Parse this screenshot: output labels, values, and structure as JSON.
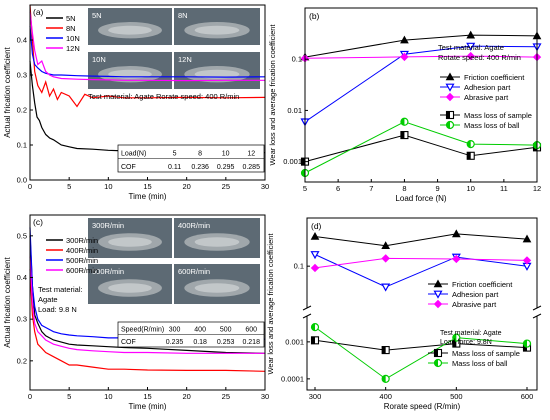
{
  "chart_data": [
    {
      "panel": "(a)",
      "type": "line",
      "xlabel": "Time (min)",
      "ylabel": "Actual frication coefficient",
      "xlim": [
        0,
        30
      ],
      "ylim": [
        0,
        0.5
      ],
      "xticks": [
        0,
        5,
        10,
        15,
        20,
        25,
        30
      ],
      "yticks": [
        0.0,
        0.1,
        0.2,
        0.3,
        0.4
      ],
      "legend_position": "top-left",
      "series": [
        {
          "name": "5N",
          "color": "#000000",
          "x": [
            0,
            0.3,
            0.6,
            0.9,
            1.2,
            1.5,
            2,
            2.5,
            3,
            4,
            5,
            6,
            8,
            10,
            12,
            15,
            20,
            25,
            30
          ],
          "y": [
            0.34,
            0.27,
            0.22,
            0.18,
            0.17,
            0.15,
            0.13,
            0.12,
            0.115,
            0.1,
            0.095,
            0.09,
            0.088,
            0.085,
            0.083,
            0.082,
            0.08,
            0.08,
            0.078
          ]
        },
        {
          "name": "8N",
          "color": "#ff0000",
          "x": [
            0,
            0.3,
            0.6,
            1,
            1.5,
            2,
            2.5,
            3,
            3.5,
            4,
            5,
            6,
            7,
            8,
            10,
            12,
            15,
            20,
            25,
            30
          ],
          "y": [
            0.5,
            0.4,
            0.31,
            0.27,
            0.25,
            0.28,
            0.24,
            0.26,
            0.23,
            0.25,
            0.24,
            0.21,
            0.245,
            0.235,
            0.24,
            0.235,
            0.235,
            0.236,
            0.235,
            0.236
          ]
        },
        {
          "name": "10N",
          "color": "#0000ff",
          "x": [
            0,
            0.3,
            0.6,
            1,
            1.5,
            2,
            3,
            4,
            6,
            8,
            10,
            12,
            15,
            20,
            25,
            30
          ],
          "y": [
            0.44,
            0.36,
            0.33,
            0.32,
            0.31,
            0.305,
            0.3,
            0.3,
            0.298,
            0.297,
            0.296,
            0.295,
            0.295,
            0.295,
            0.294,
            0.295
          ]
        },
        {
          "name": "12N",
          "color": "#ff00ff",
          "x": [
            0,
            0.3,
            0.6,
            1,
            1.5,
            2,
            2.5,
            3,
            4,
            6,
            8,
            10,
            12,
            15,
            20,
            25,
            30
          ],
          "y": [
            0.48,
            0.42,
            0.37,
            0.33,
            0.34,
            0.31,
            0.3,
            0.295,
            0.29,
            0.288,
            0.287,
            0.286,
            0.285,
            0.285,
            0.284,
            0.285,
            0.285
          ]
        }
      ],
      "image_labels": [
        "5N",
        "8N",
        "10N",
        "12N"
      ],
      "annotation": "Test material: Agate   Rorate speed: 400 R/min",
      "table": {
        "header_label": "Load(N)",
        "headers": [
          "5",
          "8",
          "10",
          "12"
        ],
        "row_label": "COF",
        "row": [
          "0.11",
          "0.236",
          "0.295",
          "0.285"
        ]
      }
    },
    {
      "panel": "(b)",
      "type": "line",
      "xlabel": "Load force (N)",
      "ylabel": "Wear  loss and average frication coefficient",
      "xlim": [
        5,
        12
      ],
      "ylim": [
        0.0004,
        1
      ],
      "yscale": "log",
      "xticks": [
        5,
        6,
        7,
        8,
        9,
        10,
        11,
        12
      ],
      "yticks": [
        "0.001",
        "0.01",
        "0.1"
      ],
      "legend_position": "right",
      "annotation": [
        "Test material: Agate",
        "Rotate speed: 400 R/min"
      ],
      "series": [
        {
          "name": "Friction coefficient",
          "color": "#000000",
          "marker": "triangle-up",
          "x": [
            5,
            8,
            10,
            12
          ],
          "y": [
            0.11,
            0.236,
            0.295,
            0.285
          ]
        },
        {
          "name": "Adhesion part",
          "color": "#0000ff",
          "marker": "triangle-down",
          "x": [
            5,
            8,
            10,
            12
          ],
          "y": [
            0.006,
            0.125,
            0.18,
            0.175
          ]
        },
        {
          "name": "Abrasive part",
          "color": "#ff00ff",
          "marker": "diamond",
          "x": [
            5,
            8,
            10,
            12
          ],
          "y": [
            0.104,
            0.111,
            0.115,
            0.11
          ]
        },
        {
          "name": "Mass loss of sample",
          "color": "#000000",
          "marker": "square-half",
          "x": [
            5,
            8,
            10,
            12
          ],
          "y": [
            0.001,
            0.0033,
            0.0013,
            0.0019
          ]
        },
        {
          "name": "Mass loss of ball",
          "color": "#00cc00",
          "marker": "circle-half",
          "x": [
            5,
            8,
            10,
            12
          ],
          "y": [
            0.0006,
            0.006,
            0.0022,
            0.0021
          ]
        }
      ]
    },
    {
      "panel": "(c)",
      "type": "line",
      "xlabel": "Time (min)",
      "ylabel": "Actual frication coefficient",
      "xlim": [
        0,
        30
      ],
      "ylim": [
        0.13,
        0.55
      ],
      "xticks": [
        0,
        5,
        10,
        15,
        20,
        25,
        30
      ],
      "yticks": [
        0.2,
        0.3,
        0.4,
        0.5
      ],
      "legend_position": "top-left",
      "series": [
        {
          "name": "300R/min",
          "color": "#000000",
          "x": [
            0,
            0.3,
            0.6,
            1,
            1.5,
            2,
            3,
            4,
            5,
            6,
            8,
            10,
            12,
            15,
            20,
            25,
            30
          ],
          "y": [
            0.5,
            0.38,
            0.31,
            0.29,
            0.27,
            0.26,
            0.25,
            0.245,
            0.24,
            0.238,
            0.236,
            0.234,
            0.232,
            0.23,
            0.225,
            0.22,
            0.218
          ]
        },
        {
          "name": "400R/min",
          "color": "#ff0000",
          "x": [
            0,
            0.3,
            0.6,
            1,
            1.5,
            2,
            3,
            4,
            5,
            6,
            8,
            10,
            12,
            15,
            20,
            25,
            30
          ],
          "y": [
            0.42,
            0.31,
            0.27,
            0.24,
            0.23,
            0.22,
            0.21,
            0.2,
            0.19,
            0.19,
            0.185,
            0.18,
            0.18,
            0.178,
            0.177,
            0.177,
            0.175
          ]
        },
        {
          "name": "500R/min",
          "color": "#0000ff",
          "x": [
            0,
            0.3,
            0.6,
            1,
            1.5,
            2,
            3,
            4,
            5,
            6,
            8,
            10,
            12,
            15,
            20,
            25,
            30
          ],
          "y": [
            0.52,
            0.38,
            0.33,
            0.3,
            0.285,
            0.28,
            0.27,
            0.265,
            0.262,
            0.26,
            0.258,
            0.255,
            0.255,
            0.254,
            0.253,
            0.252,
            0.252
          ]
        },
        {
          "name": "600R/min",
          "color": "#ff00ff",
          "x": [
            0,
            0.3,
            0.6,
            1,
            1.5,
            2,
            3,
            4,
            5,
            6,
            8,
            10,
            12,
            15,
            20,
            25,
            30
          ],
          "y": [
            0.45,
            0.34,
            0.29,
            0.27,
            0.26,
            0.25,
            0.24,
            0.235,
            0.23,
            0.227,
            0.224,
            0.222,
            0.22,
            0.22,
            0.218,
            0.218,
            0.218
          ]
        }
      ],
      "image_labels": [
        "300R/min",
        "400R/min",
        "500R/min",
        "600R/min"
      ],
      "annotation": [
        "Test material:",
        "Agate",
        "Load: 9.8 N"
      ],
      "table": {
        "header_label": "Speed(R/min)",
        "headers": [
          "300",
          "400",
          "500",
          "600"
        ],
        "row_label": "COF",
        "row": [
          "0.235",
          "0.18",
          "0.253",
          "0.218"
        ]
      }
    },
    {
      "panel": "(d)",
      "type": "line",
      "xlabel": "Rorate speed (R/min)",
      "ylabel": "Wear  loss and average frication coefficient",
      "xlim": [
        300,
        600
      ],
      "xticks": [
        300,
        400,
        500,
        600
      ],
      "legend_position": "right",
      "top": {
        "ylim": [
          0.03,
          0.4
        ],
        "yscale": "log",
        "yticks": [
          "0.1"
        ],
        "series": [
          {
            "name": "Friction coefficient",
            "color": "#000000",
            "marker": "triangle-up",
            "x": [
              300,
              400,
              500,
              600
            ],
            "y": [
              0.235,
              0.18,
              0.253,
              0.218
            ]
          },
          {
            "name": "Adhesion part",
            "color": "#0000ff",
            "marker": "triangle-down",
            "x": [
              300,
              400,
              500,
              600
            ],
            "y": [
              0.14,
              0.055,
              0.13,
              0.1
            ]
          },
          {
            "name": "Abrasive part",
            "color": "#ff00ff",
            "marker": "diamond",
            "x": [
              300,
              400,
              500,
              600
            ],
            "y": [
              0.095,
              0.125,
              0.123,
              0.118
            ]
          }
        ]
      },
      "bottom": {
        "ylim": [
          5e-05,
          0.005
        ],
        "yscale": "log",
        "yticks": [
          "0.0001",
          "0.001"
        ],
        "series": [
          {
            "name": "Mass loss of sample",
            "color": "#000000",
            "marker": "square-half",
            "x": [
              300,
              400,
              500,
              600
            ],
            "y": [
              0.0011,
              0.0006,
              0.0009,
              0.0007
            ]
          },
          {
            "name": "Mass loss of ball",
            "color": "#00cc00",
            "marker": "circle-half",
            "x": [
              300,
              400,
              500,
              600
            ],
            "y": [
              0.0025,
              0.0001,
              0.0013,
              0.0009
            ]
          }
        ]
      },
      "annotation": [
        "Test material: Agate",
        "Load force: 9.8N"
      ]
    }
  ]
}
